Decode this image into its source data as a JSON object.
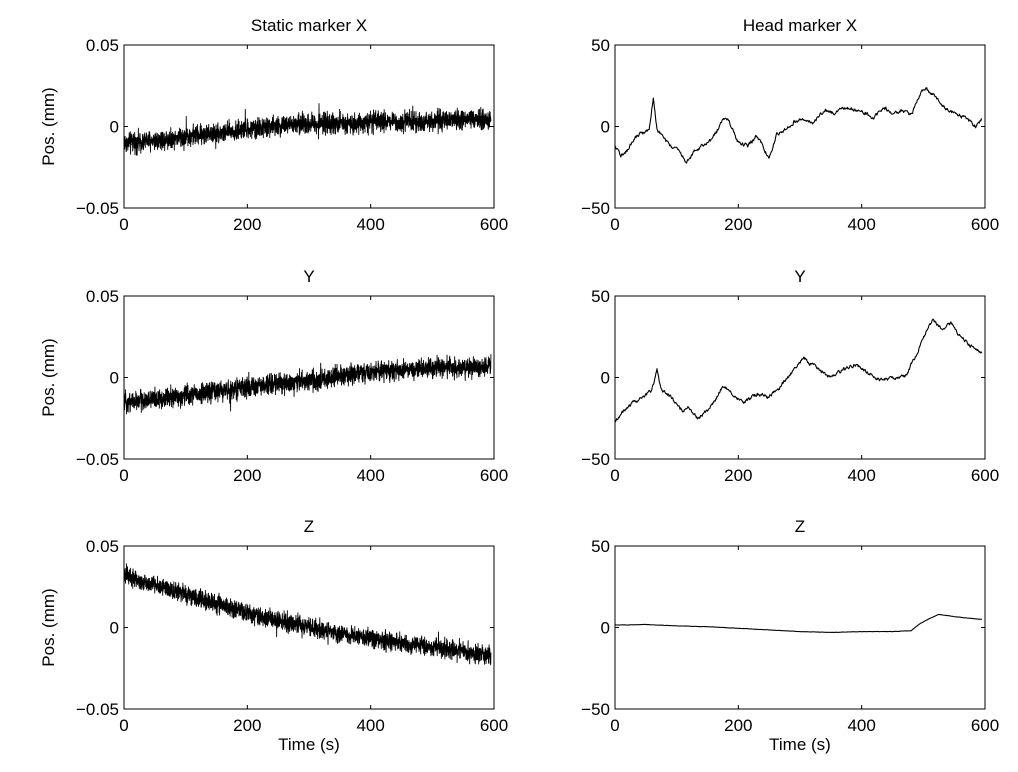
{
  "chart_data": [
    {
      "type": "line",
      "title": "Static marker X",
      "xlabel": "",
      "ylabel": "Pos. (mm)",
      "xlim": [
        0,
        600
      ],
      "ylim": [
        -0.05,
        0.05
      ],
      "xticks": [
        "0",
        "200",
        "400",
        "600"
      ],
      "yticks": [
        "−0.05",
        "0",
        "0.05"
      ],
      "noisy": true,
      "series": [
        {
          "x": [
            0,
            60,
            120,
            180,
            240,
            300,
            360,
            420,
            480,
            540,
            595
          ],
          "y": [
            -0.01,
            -0.008,
            -0.005,
            -0.003,
            0.0,
            0.002,
            0.002,
            0.003,
            0.003,
            0.004,
            0.004
          ],
          "noise_amplitude": 0.009
        }
      ]
    },
    {
      "type": "line",
      "title": "Head marker X",
      "xlabel": "",
      "ylabel": "",
      "xlim": [
        0,
        600
      ],
      "ylim": [
        -50,
        50
      ],
      "xticks": [
        "0",
        "200",
        "400",
        "600"
      ],
      "yticks": [
        "−50",
        "0",
        "50"
      ],
      "noisy": false,
      "series": [
        {
          "x": [
            0,
            10,
            20,
            30,
            40,
            55,
            62,
            68,
            75,
            90,
            105,
            115,
            130,
            150,
            165,
            175,
            185,
            200,
            215,
            230,
            240,
            250,
            262,
            275,
            290,
            305,
            320,
            340,
            355,
            375,
            390,
            405,
            420,
            435,
            450,
            465,
            480,
            495,
            505,
            515,
            525,
            540,
            555,
            570,
            585,
            595
          ],
          "y": [
            -12,
            -18,
            -15,
            -8,
            -5,
            -3,
            18,
            -2,
            -5,
            -12,
            -15,
            -22,
            -15,
            -10,
            -3,
            5,
            3,
            -10,
            -12,
            -6,
            -12,
            -20,
            -5,
            -2,
            3,
            5,
            2,
            10,
            8,
            12,
            10,
            8,
            5,
            12,
            8,
            10,
            7,
            20,
            23,
            20,
            15,
            10,
            8,
            5,
            0,
            5
          ]
        }
      ]
    },
    {
      "type": "line",
      "title": "Y",
      "xlabel": "",
      "ylabel": "Pos. (mm)",
      "xlim": [
        0,
        600
      ],
      "ylim": [
        -0.05,
        0.05
      ],
      "xticks": [
        "0",
        "200",
        "400",
        "600"
      ],
      "yticks": [
        "−0.05",
        "0",
        "0.05"
      ],
      "noisy": true,
      "series": [
        {
          "x": [
            0,
            60,
            120,
            180,
            240,
            300,
            360,
            420,
            480,
            540,
            595
          ],
          "y": [
            -0.015,
            -0.013,
            -0.01,
            -0.007,
            -0.004,
            -0.002,
            0.001,
            0.004,
            0.005,
            0.006,
            0.007
          ],
          "noise_amplitude": 0.009
        }
      ]
    },
    {
      "type": "line",
      "title": "Y",
      "xlabel": "",
      "ylabel": "",
      "xlim": [
        0,
        600
      ],
      "ylim": [
        -50,
        50
      ],
      "xticks": [
        "0",
        "200",
        "400",
        "600"
      ],
      "yticks": [
        "−50",
        "0",
        "50"
      ],
      "noisy": false,
      "series": [
        {
          "x": [
            0,
            15,
            30,
            45,
            60,
            68,
            75,
            90,
            110,
            120,
            135,
            150,
            165,
            175,
            190,
            210,
            230,
            250,
            270,
            290,
            305,
            320,
            335,
            350,
            370,
            390,
            410,
            430,
            450,
            470,
            490,
            500,
            515,
            530,
            545,
            560,
            575,
            595
          ],
          "y": [
            -27,
            -20,
            -15,
            -12,
            -8,
            5,
            -8,
            -12,
            -20,
            -18,
            -25,
            -20,
            -12,
            -5,
            -10,
            -15,
            -10,
            -12,
            -5,
            5,
            12,
            8,
            3,
            0,
            5,
            8,
            3,
            -2,
            0,
            0,
            15,
            25,
            35,
            30,
            33,
            25,
            20,
            15
          ]
        }
      ]
    },
    {
      "type": "line",
      "title": "Z",
      "xlabel": "Time (s)",
      "ylabel": "Pos. (mm)",
      "xlim": [
        0,
        600
      ],
      "ylim": [
        -0.05,
        0.05
      ],
      "xticks": [
        "0",
        "200",
        "400",
        "600"
      ],
      "yticks": [
        "−0.05",
        "0",
        "0.05"
      ],
      "noisy": true,
      "series": [
        {
          "x": [
            0,
            60,
            120,
            180,
            240,
            300,
            360,
            420,
            480,
            540,
            595
          ],
          "y": [
            0.032,
            0.025,
            0.018,
            0.011,
            0.005,
            0.0,
            -0.004,
            -0.008,
            -0.011,
            -0.014,
            -0.018
          ],
          "noise_amplitude": 0.008
        }
      ]
    },
    {
      "type": "line",
      "title": "Z",
      "xlabel": "Time (s)",
      "ylabel": "",
      "xlim": [
        0,
        600
      ],
      "ylim": [
        -50,
        50
      ],
      "xticks": [
        "0",
        "200",
        "400",
        "600"
      ],
      "yticks": [
        "−50",
        "0",
        "50"
      ],
      "noisy": false,
      "series": [
        {
          "x": [
            0,
            50,
            100,
            150,
            200,
            250,
            300,
            350,
            400,
            450,
            480,
            495,
            510,
            525,
            545,
            565,
            595
          ],
          "y": [
            1.5,
            1.8,
            1.0,
            0.5,
            -0.5,
            -1.5,
            -2.5,
            -3.0,
            -2.5,
            -2.5,
            -2.0,
            2.5,
            5.5,
            8.0,
            7.0,
            6.0,
            5.0
          ]
        }
      ]
    }
  ]
}
